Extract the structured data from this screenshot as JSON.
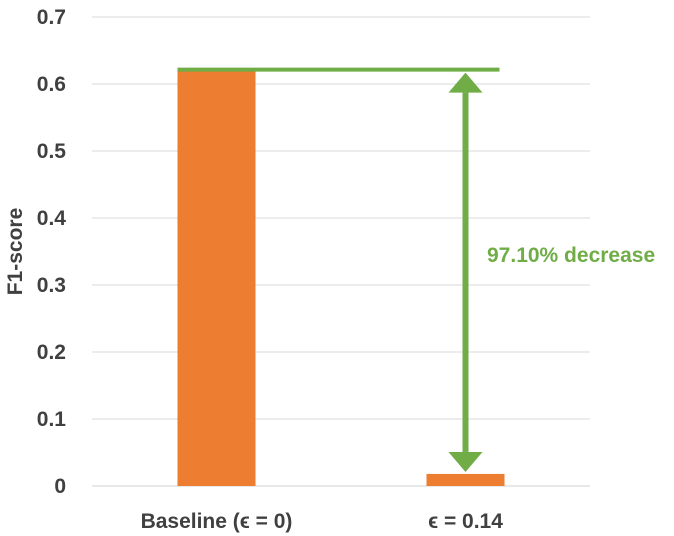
{
  "chart_data": {
    "type": "bar",
    "categories": [
      "Baseline (ϵ = 0)",
      "ϵ = 0.14"
    ],
    "values": [
      0.62,
      0.018
    ],
    "title": "",
    "xlabel": "",
    "ylabel": "F1-score",
    "ylim": [
      0,
      0.7
    ],
    "yticks": [
      0,
      0.1,
      0.2,
      0.3,
      0.4,
      0.5,
      0.6,
      0.7
    ],
    "ytick_labels": [
      "0",
      "0.1",
      "0.2",
      "0.3",
      "0.4",
      "0.5",
      "0.6",
      "0.7"
    ],
    "grid": true,
    "legend": "none",
    "bar_color": "#ED7D31",
    "annotation": {
      "text": "97.10% decrease",
      "color": "#70AD47",
      "from_value": 0.62,
      "to_value": 0.018
    }
  }
}
